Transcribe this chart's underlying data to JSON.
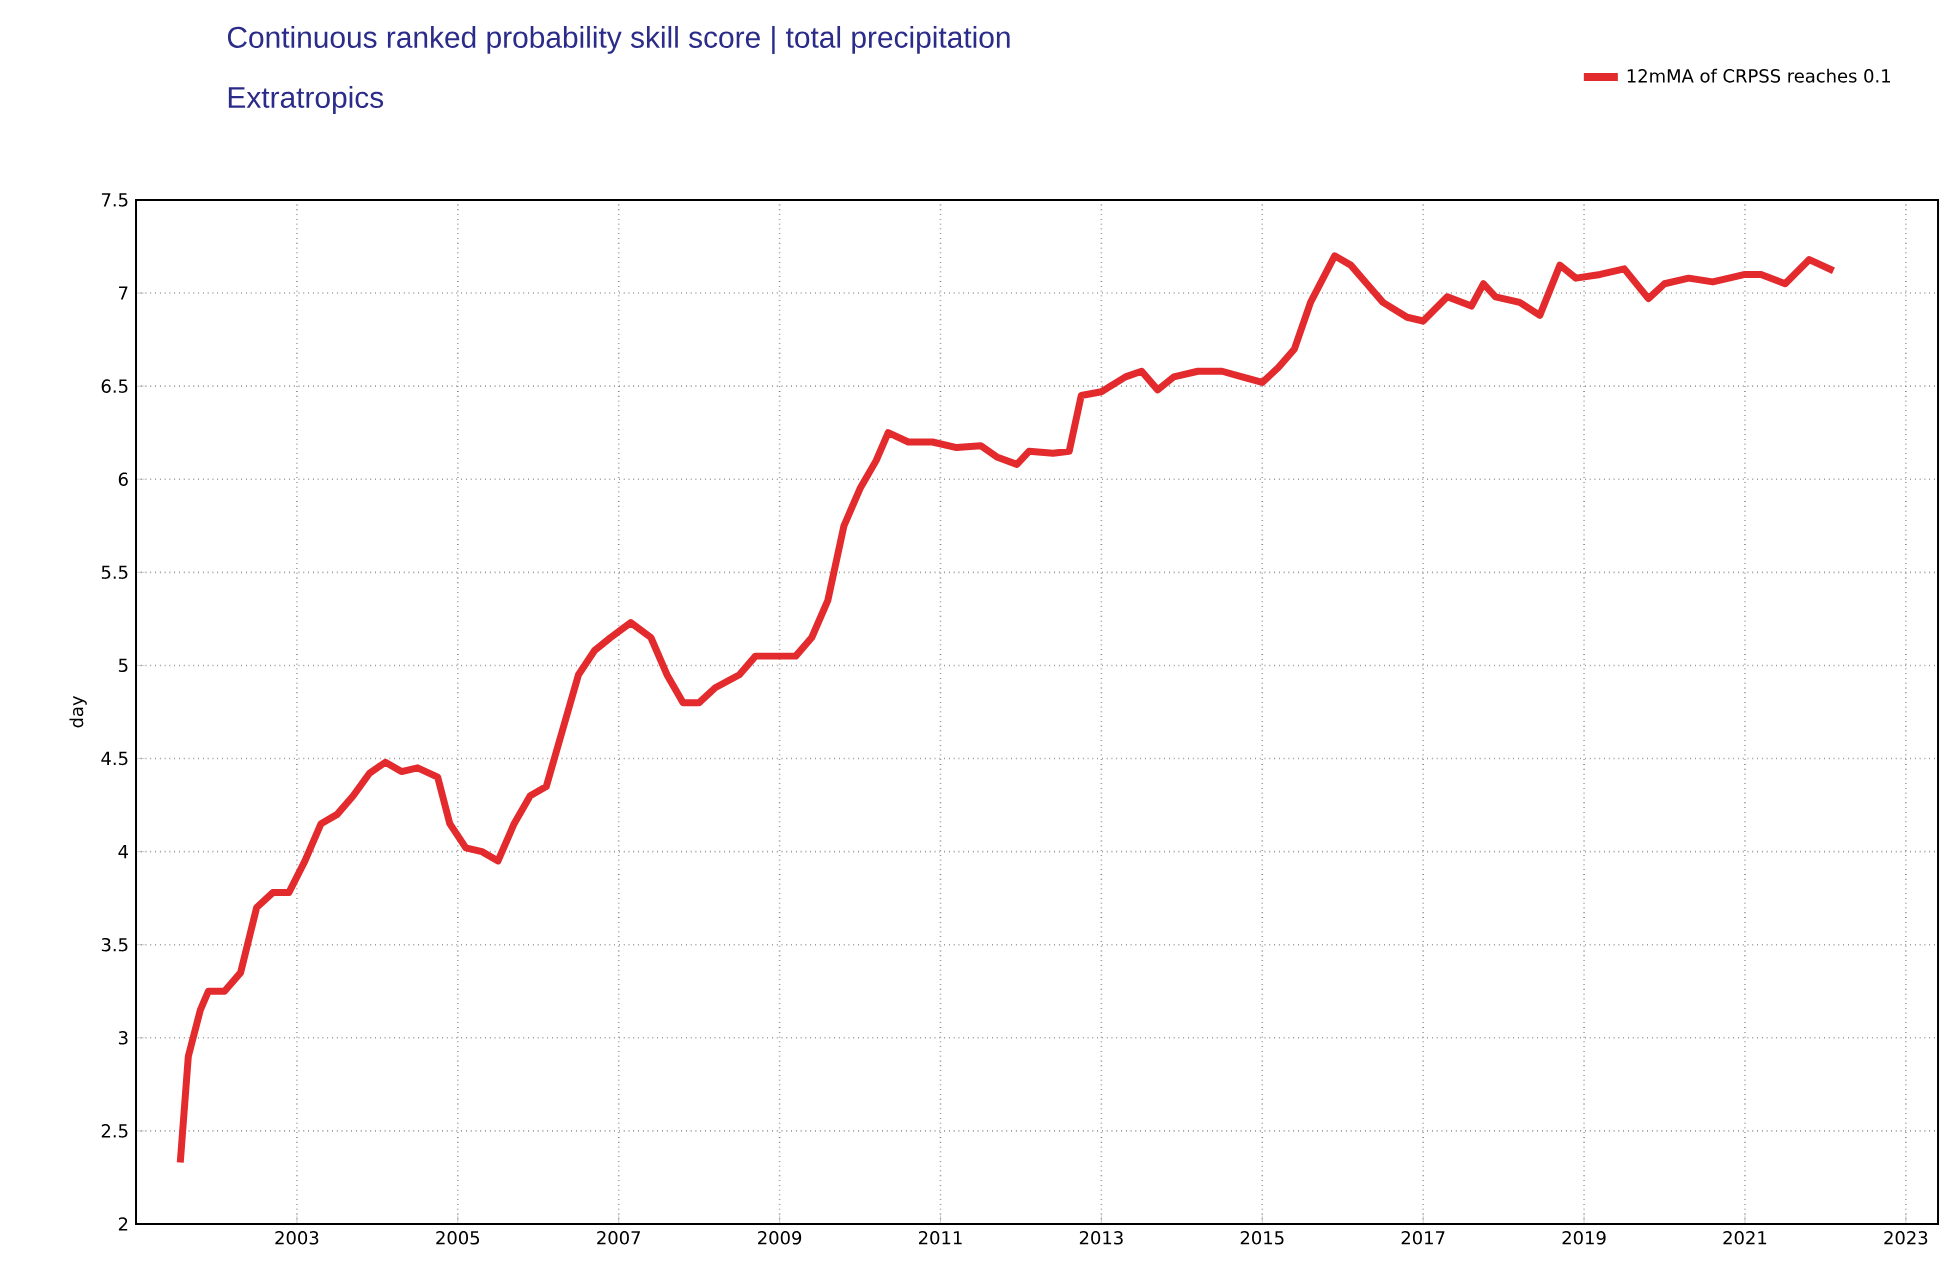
{
  "chart_data": {
    "type": "line",
    "title": "Continuous ranked probability skill score | total precipitation",
    "subtitle": "Extratropics",
    "ylabel": "day",
    "xlim": [
      2001,
      2023.4
    ],
    "xticks": [
      2003,
      2005,
      2007,
      2009,
      2011,
      2013,
      2015,
      2017,
      2019,
      2021,
      2023
    ],
    "ylim": [
      2,
      7.5
    ],
    "yticks": [
      2,
      2.5,
      3,
      3.5,
      4,
      4.5,
      5,
      5.5,
      6,
      6.5,
      7,
      7.5
    ],
    "grid": true,
    "legend": "top right",
    "marker": "none",
    "line_style": "solid",
    "series": [
      {
        "name": "12mMA of CRPSS reaches 0.1",
        "color": "#e32a2d",
        "x": [
          2001.55,
          2001.65,
          2001.8,
          2001.9,
          2002.1,
          2002.3,
          2002.5,
          2002.7,
          2002.9,
          2003.1,
          2003.3,
          2003.5,
          2003.7,
          2003.9,
          2004.1,
          2004.3,
          2004.5,
          2004.75,
          2004.9,
          2005.1,
          2005.3,
          2005.5,
          2005.7,
          2005.9,
          2006.1,
          2006.3,
          2006.5,
          2006.7,
          2006.9,
          2007.15,
          2007.4,
          2007.6,
          2007.8,
          2008.0,
          2008.2,
          2008.5,
          2008.7,
          2009.0,
          2009.2,
          2009.4,
          2009.6,
          2009.8,
          2010.0,
          2010.2,
          2010.35,
          2010.6,
          2010.9,
          2011.2,
          2011.5,
          2011.7,
          2011.95,
          2012.1,
          2012.4,
          2012.6,
          2012.75,
          2013.0,
          2013.3,
          2013.5,
          2013.7,
          2013.9,
          2014.2,
          2014.5,
          2014.75,
          2015.0,
          2015.2,
          2015.4,
          2015.6,
          2015.9,
          2016.1,
          2016.3,
          2016.5,
          2016.8,
          2017.0,
          2017.3,
          2017.6,
          2017.75,
          2017.9,
          2018.2,
          2018.45,
          2018.7,
          2018.9,
          2019.2,
          2019.5,
          2019.8,
          2020.0,
          2020.3,
          2020.6,
          2021.0,
          2021.2,
          2021.5,
          2021.8,
          2022.1
        ],
        "values": [
          2.33,
          2.9,
          3.15,
          3.25,
          3.25,
          3.35,
          3.7,
          3.78,
          3.78,
          3.95,
          4.15,
          4.2,
          4.3,
          4.42,
          4.48,
          4.43,
          4.45,
          4.4,
          4.15,
          4.02,
          4.0,
          3.95,
          4.15,
          4.3,
          4.35,
          4.65,
          4.95,
          5.08,
          5.15,
          5.23,
          5.15,
          4.95,
          4.8,
          4.8,
          4.88,
          4.95,
          5.05,
          5.05,
          5.05,
          5.15,
          5.35,
          5.75,
          5.95,
          6.1,
          6.25,
          6.2,
          6.2,
          6.17,
          6.18,
          6.12,
          6.08,
          6.15,
          6.14,
          6.15,
          6.45,
          6.47,
          6.55,
          6.58,
          6.48,
          6.55,
          6.58,
          6.58,
          6.55,
          6.52,
          6.6,
          6.7,
          6.95,
          7.2,
          7.15,
          7.05,
          6.95,
          6.87,
          6.85,
          6.98,
          6.93,
          7.05,
          6.98,
          6.95,
          6.88,
          7.15,
          7.08,
          7.1,
          7.13,
          6.97,
          7.05,
          7.08,
          7.06,
          7.1,
          7.1,
          7.05,
          7.18,
          7.12
        ]
      }
    ]
  }
}
